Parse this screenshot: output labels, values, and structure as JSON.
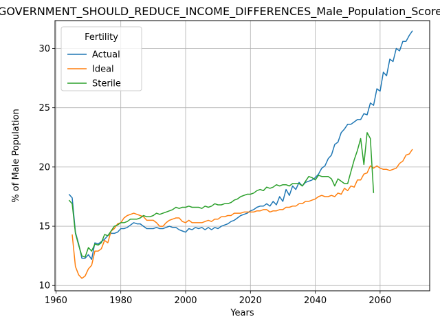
{
  "chart_data": {
    "type": "line",
    "title": "GOVERNMENT_SHOULD_REDUCE_INCOME_DIFFERENCES_Male_Population_Score",
    "xlabel": "Years",
    "ylabel": "% of Male Population",
    "xlim": [
      1959.7,
      2075.3
    ],
    "ylim": [
      9.55,
      32.35
    ],
    "xticks": [
      1960,
      1980,
      2000,
      2020,
      2040,
      2060
    ],
    "yticks": [
      10,
      15,
      20,
      25,
      30
    ],
    "grid": true,
    "legend": {
      "title": "Fertility",
      "position": "top-left"
    },
    "series": [
      {
        "name": "Actual",
        "color": "#1f77b4",
        "points": [
          [
            1964,
            17.7
          ],
          [
            1965,
            17.4
          ],
          [
            1966,
            14.5
          ],
          [
            1967,
            13.5
          ],
          [
            1968,
            12.3
          ],
          [
            1969,
            12.3
          ],
          [
            1970,
            12.6
          ],
          [
            1971,
            12.2
          ],
          [
            1972,
            13.6
          ],
          [
            1973,
            13.5
          ],
          [
            1974,
            13.7
          ],
          [
            1975,
            13.9
          ],
          [
            1976,
            14.2
          ],
          [
            1977,
            14.4
          ],
          [
            1978,
            14.4
          ],
          [
            1979,
            14.5
          ],
          [
            1980,
            14.8
          ],
          [
            1981,
            14.8
          ],
          [
            1982,
            14.9
          ],
          [
            1983,
            15.1
          ],
          [
            1984,
            15.3
          ],
          [
            1985,
            15.2
          ],
          [
            1986,
            15.2
          ],
          [
            1987,
            15.0
          ],
          [
            1988,
            14.8
          ],
          [
            1989,
            14.8
          ],
          [
            1990,
            14.8
          ],
          [
            1991,
            14.9
          ],
          [
            1992,
            14.8
          ],
          [
            1993,
            14.8
          ],
          [
            1994,
            14.9
          ],
          [
            1995,
            15.0
          ],
          [
            1996,
            14.9
          ],
          [
            1997,
            14.9
          ],
          [
            1998,
            14.7
          ],
          [
            1999,
            14.6
          ],
          [
            2000,
            14.5
          ],
          [
            2001,
            14.8
          ],
          [
            2002,
            14.7
          ],
          [
            2003,
            14.9
          ],
          [
            2004,
            14.8
          ],
          [
            2005,
            14.9
          ],
          [
            2006,
            14.7
          ],
          [
            2007,
            14.9
          ],
          [
            2008,
            14.7
          ],
          [
            2009,
            14.9
          ],
          [
            2010,
            14.8
          ],
          [
            2011,
            15.0
          ],
          [
            2012,
            15.1
          ],
          [
            2013,
            15.2
          ],
          [
            2014,
            15.4
          ],
          [
            2015,
            15.5
          ],
          [
            2016,
            15.7
          ],
          [
            2017,
            15.9
          ],
          [
            2018,
            16.0
          ],
          [
            2019,
            16.1
          ],
          [
            2020,
            16.3
          ],
          [
            2021,
            16.4
          ],
          [
            2022,
            16.6
          ],
          [
            2023,
            16.7
          ],
          [
            2024,
            16.7
          ],
          [
            2025,
            16.9
          ],
          [
            2026,
            16.7
          ],
          [
            2027,
            17.1
          ],
          [
            2028,
            16.8
          ],
          [
            2029,
            17.5
          ],
          [
            2030,
            17.1
          ],
          [
            2031,
            18.1
          ],
          [
            2032,
            17.6
          ],
          [
            2033,
            18.4
          ],
          [
            2034,
            18.1
          ],
          [
            2035,
            18.7
          ],
          [
            2036,
            18.4
          ],
          [
            2037,
            18.7
          ],
          [
            2038,
            18.8
          ],
          [
            2039,
            18.9
          ],
          [
            2040,
            19.1
          ],
          [
            2041,
            19.4
          ],
          [
            2042,
            19.9
          ],
          [
            2043,
            20.1
          ],
          [
            2044,
            20.7
          ],
          [
            2045,
            21.0
          ],
          [
            2046,
            21.9
          ],
          [
            2047,
            22.1
          ],
          [
            2048,
            22.9
          ],
          [
            2049,
            23.2
          ],
          [
            2050,
            23.6
          ],
          [
            2051,
            23.6
          ],
          [
            2052,
            23.8
          ],
          [
            2053,
            24.0
          ],
          [
            2054,
            24.0
          ],
          [
            2055,
            24.5
          ],
          [
            2056,
            24.4
          ],
          [
            2057,
            25.4
          ],
          [
            2058,
            25.2
          ],
          [
            2059,
            26.6
          ],
          [
            2060,
            26.4
          ],
          [
            2061,
            28.0
          ],
          [
            2062,
            27.7
          ],
          [
            2063,
            29.1
          ],
          [
            2064,
            28.9
          ],
          [
            2065,
            30.0
          ],
          [
            2066,
            29.8
          ],
          [
            2067,
            30.6
          ],
          [
            2068,
            30.6
          ],
          [
            2069,
            31.1
          ],
          [
            2070,
            31.5
          ]
        ]
      },
      {
        "name": "Ideal",
        "color": "#ff7f0e",
        "points": [
          [
            1965,
            14.3
          ],
          [
            1966,
            11.6
          ],
          [
            1967,
            10.9
          ],
          [
            1968,
            10.6
          ],
          [
            1969,
            10.8
          ],
          [
            1970,
            11.4
          ],
          [
            1971,
            11.7
          ],
          [
            1972,
            12.9
          ],
          [
            1973,
            12.9
          ],
          [
            1974,
            13.1
          ],
          [
            1975,
            13.8
          ],
          [
            1976,
            13.6
          ],
          [
            1977,
            14.6
          ],
          [
            1978,
            14.8
          ],
          [
            1979,
            15.2
          ],
          [
            1980,
            15.3
          ],
          [
            1981,
            15.7
          ],
          [
            1982,
            15.9
          ],
          [
            1983,
            16.0
          ],
          [
            1984,
            16.1
          ],
          [
            1985,
            16.0
          ],
          [
            1986,
            15.9
          ],
          [
            1987,
            15.8
          ],
          [
            1988,
            15.5
          ],
          [
            1989,
            15.5
          ],
          [
            1990,
            15.5
          ],
          [
            1991,
            15.3
          ],
          [
            1992,
            15.0
          ],
          [
            1993,
            15.0
          ],
          [
            1994,
            15.3
          ],
          [
            1995,
            15.5
          ],
          [
            1996,
            15.6
          ],
          [
            1997,
            15.7
          ],
          [
            1998,
            15.7
          ],
          [
            1999,
            15.4
          ],
          [
            2000,
            15.3
          ],
          [
            2001,
            15.5
          ],
          [
            2002,
            15.3
          ],
          [
            2003,
            15.3
          ],
          [
            2004,
            15.3
          ],
          [
            2005,
            15.3
          ],
          [
            2006,
            15.4
          ],
          [
            2007,
            15.5
          ],
          [
            2008,
            15.4
          ],
          [
            2009,
            15.6
          ],
          [
            2010,
            15.6
          ],
          [
            2011,
            15.8
          ],
          [
            2012,
            15.8
          ],
          [
            2013,
            15.9
          ],
          [
            2014,
            15.9
          ],
          [
            2015,
            16.1
          ],
          [
            2016,
            16.1
          ],
          [
            2017,
            16.1
          ],
          [
            2018,
            16.2
          ],
          [
            2019,
            16.2
          ],
          [
            2020,
            16.2
          ],
          [
            2021,
            16.2
          ],
          [
            2022,
            16.3
          ],
          [
            2023,
            16.3
          ],
          [
            2024,
            16.4
          ],
          [
            2025,
            16.4
          ],
          [
            2026,
            16.2
          ],
          [
            2027,
            16.3
          ],
          [
            2028,
            16.3
          ],
          [
            2029,
            16.4
          ],
          [
            2030,
            16.4
          ],
          [
            2031,
            16.6
          ],
          [
            2032,
            16.6
          ],
          [
            2033,
            16.7
          ],
          [
            2034,
            16.7
          ],
          [
            2035,
            16.9
          ],
          [
            2036,
            16.9
          ],
          [
            2037,
            17.1
          ],
          [
            2038,
            17.1
          ],
          [
            2039,
            17.2
          ],
          [
            2040,
            17.3
          ],
          [
            2041,
            17.5
          ],
          [
            2042,
            17.6
          ],
          [
            2043,
            17.5
          ],
          [
            2044,
            17.5
          ],
          [
            2045,
            17.6
          ],
          [
            2046,
            17.5
          ],
          [
            2047,
            17.8
          ],
          [
            2048,
            17.7
          ],
          [
            2049,
            18.2
          ],
          [
            2050,
            18.0
          ],
          [
            2051,
            18.4
          ],
          [
            2052,
            18.3
          ],
          [
            2053,
            18.9
          ],
          [
            2054,
            18.9
          ],
          [
            2055,
            19.4
          ],
          [
            2056,
            19.5
          ],
          [
            2057,
            20.1
          ],
          [
            2058,
            19.9
          ],
          [
            2059,
            20.1
          ],
          [
            2060,
            19.9
          ],
          [
            2061,
            19.8
          ],
          [
            2062,
            19.8
          ],
          [
            2063,
            19.7
          ],
          [
            2064,
            19.8
          ],
          [
            2065,
            19.9
          ],
          [
            2066,
            20.3
          ],
          [
            2067,
            20.5
          ],
          [
            2068,
            21.0
          ],
          [
            2069,
            21.1
          ],
          [
            2070,
            21.5
          ]
        ]
      },
      {
        "name": "Sterile",
        "color": "#2ca02c",
        "points": [
          [
            1964,
            17.2
          ],
          [
            1965,
            16.9
          ],
          [
            1966,
            14.4
          ],
          [
            1967,
            13.4
          ],
          [
            1968,
            12.5
          ],
          [
            1969,
            12.4
          ],
          [
            1970,
            13.2
          ],
          [
            1971,
            12.9
          ],
          [
            1972,
            13.5
          ],
          [
            1973,
            13.4
          ],
          [
            1974,
            13.6
          ],
          [
            1975,
            14.3
          ],
          [
            1976,
            14.2
          ],
          [
            1977,
            14.6
          ],
          [
            1978,
            15.0
          ],
          [
            1979,
            15.1
          ],
          [
            1980,
            15.3
          ],
          [
            1981,
            15.3
          ],
          [
            1982,
            15.4
          ],
          [
            1983,
            15.6
          ],
          [
            1984,
            15.6
          ],
          [
            1985,
            15.6
          ],
          [
            1986,
            15.7
          ],
          [
            1987,
            15.9
          ],
          [
            1988,
            15.8
          ],
          [
            1989,
            15.8
          ],
          [
            1990,
            15.9
          ],
          [
            1991,
            16.1
          ],
          [
            1992,
            16.0
          ],
          [
            1993,
            16.1
          ],
          [
            1994,
            16.2
          ],
          [
            1995,
            16.3
          ],
          [
            1996,
            16.4
          ],
          [
            1997,
            16.6
          ],
          [
            1998,
            16.5
          ],
          [
            1999,
            16.6
          ],
          [
            2000,
            16.6
          ],
          [
            2001,
            16.7
          ],
          [
            2002,
            16.6
          ],
          [
            2003,
            16.6
          ],
          [
            2004,
            16.6
          ],
          [
            2005,
            16.5
          ],
          [
            2006,
            16.7
          ],
          [
            2007,
            16.6
          ],
          [
            2008,
            16.7
          ],
          [
            2009,
            16.9
          ],
          [
            2010,
            16.8
          ],
          [
            2011,
            16.8
          ],
          [
            2012,
            16.9
          ],
          [
            2013,
            16.9
          ],
          [
            2014,
            17.0
          ],
          [
            2015,
            17.2
          ],
          [
            2016,
            17.3
          ],
          [
            2017,
            17.5
          ],
          [
            2018,
            17.6
          ],
          [
            2019,
            17.7
          ],
          [
            2020,
            17.7
          ],
          [
            2021,
            17.8
          ],
          [
            2022,
            18.0
          ],
          [
            2023,
            18.1
          ],
          [
            2024,
            18.0
          ],
          [
            2025,
            18.3
          ],
          [
            2026,
            18.2
          ],
          [
            2027,
            18.3
          ],
          [
            2028,
            18.5
          ],
          [
            2029,
            18.4
          ],
          [
            2030,
            18.5
          ],
          [
            2031,
            18.5
          ],
          [
            2032,
            18.4
          ],
          [
            2033,
            18.6
          ],
          [
            2034,
            18.6
          ],
          [
            2035,
            18.6
          ],
          [
            2036,
            18.4
          ],
          [
            2037,
            18.8
          ],
          [
            2038,
            19.2
          ],
          [
            2039,
            19.1
          ],
          [
            2040,
            18.9
          ],
          [
            2041,
            19.3
          ],
          [
            2042,
            19.2
          ],
          [
            2043,
            19.2
          ],
          [
            2044,
            19.2
          ],
          [
            2045,
            19.0
          ],
          [
            2046,
            18.4
          ],
          [
            2047,
            19.0
          ],
          [
            2048,
            18.8
          ],
          [
            2049,
            18.6
          ],
          [
            2050,
            18.6
          ],
          [
            2051,
            19.6
          ],
          [
            2052,
            20.6
          ],
          [
            2053,
            21.4
          ],
          [
            2054,
            22.4
          ],
          [
            2055,
            20.2
          ],
          [
            2056,
            22.9
          ],
          [
            2057,
            22.4
          ],
          [
            2058,
            17.8
          ]
        ]
      }
    ]
  }
}
